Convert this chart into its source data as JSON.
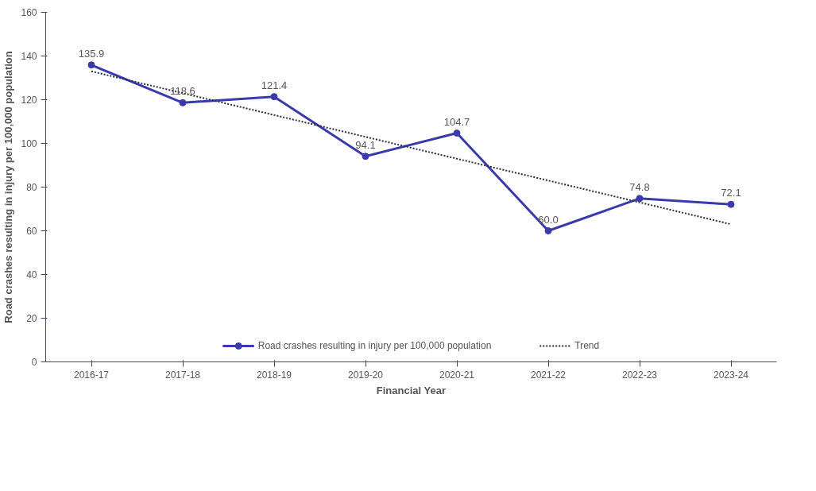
{
  "chart_data": {
    "type": "line",
    "xlabel": "Financial Year",
    "ylabel": "Road crashes resulting in injury per 100,000 population",
    "categories": [
      "2016-17",
      "2017-18",
      "2018-19",
      "2019-20",
      "2020-21",
      "2021-22",
      "2022-23",
      "2023-24"
    ],
    "ylim": [
      0,
      160
    ],
    "yticks": [
      0,
      20,
      40,
      60,
      80,
      100,
      120,
      140,
      160
    ],
    "grid": false,
    "legend": "bottom",
    "series": [
      {
        "name": "Road crashes resulting in injury per 100,000 population",
        "color": "#3a3aad",
        "marker": "circle",
        "line_style": "solid",
        "values": [
          135.9,
          118.6,
          121.4,
          94.1,
          104.7,
          60.0,
          74.8,
          72.1
        ],
        "value_labels": [
          "135.9",
          "118.6",
          "121.4",
          "94.1",
          "104.7",
          "60.0",
          "74.8",
          "72.1"
        ]
      },
      {
        "name": "Trend",
        "color": "#2b2b4a",
        "marker": "none",
        "line_style": "dotted",
        "values": [
          133,
          123,
          113,
          103,
          93,
          83,
          73,
          63
        ]
      }
    ]
  }
}
